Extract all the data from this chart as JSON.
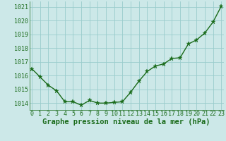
{
  "x": [
    0,
    1,
    2,
    3,
    4,
    5,
    6,
    7,
    8,
    9,
    10,
    11,
    12,
    13,
    14,
    15,
    16,
    17,
    18,
    19,
    20,
    21,
    22,
    23
  ],
  "y": [
    1016.5,
    1015.9,
    1015.3,
    1014.9,
    1014.1,
    1014.1,
    1013.85,
    1014.2,
    1014.0,
    1014.0,
    1014.05,
    1014.1,
    1014.8,
    1015.6,
    1016.3,
    1016.7,
    1016.85,
    1017.25,
    1017.3,
    1018.3,
    1018.6,
    1019.1,
    1019.9,
    1021.05
  ],
  "line_color": "#1a6b1a",
  "marker": "*",
  "marker_color": "#1a6b1a",
  "bg_color": "#cce8e8",
  "grid_color": "#99cccc",
  "xlabel": "Graphe pression niveau de la mer (hPa)",
  "xlabel_color": "#1a6b1a",
  "tick_color": "#1a6b1a",
  "ylim": [
    1013.5,
    1021.4
  ],
  "xlim": [
    -0.3,
    23.3
  ],
  "yticks": [
    1014,
    1015,
    1016,
    1017,
    1018,
    1019,
    1020,
    1021
  ],
  "xticks": [
    0,
    1,
    2,
    3,
    4,
    5,
    6,
    7,
    8,
    9,
    10,
    11,
    12,
    13,
    14,
    15,
    16,
    17,
    18,
    19,
    20,
    21,
    22,
    23
  ],
  "xlabel_fontsize": 7.5,
  "tick_fontsize": 6.0,
  "line_width": 1.0,
  "marker_size": 4.5
}
